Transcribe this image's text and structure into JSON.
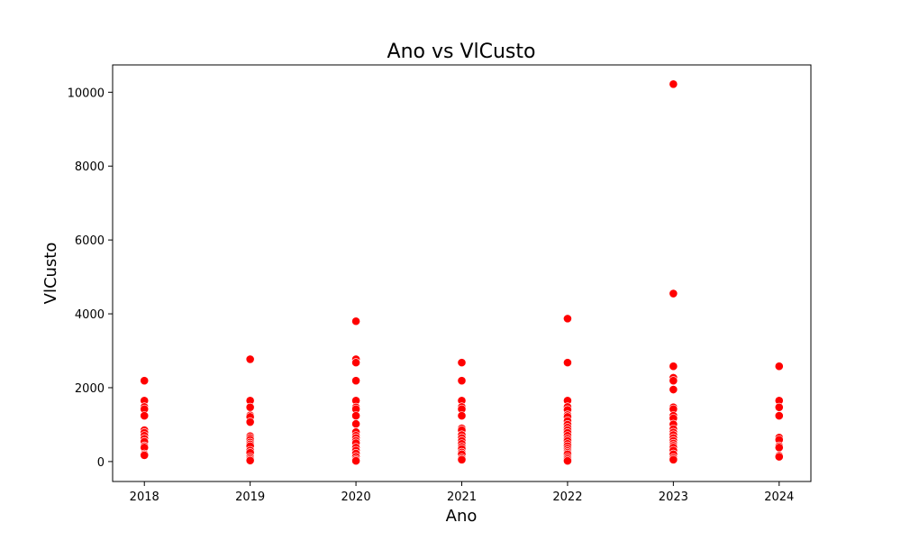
{
  "chart_data": {
    "type": "scatter",
    "title": "Ano vs VlCusto",
    "xlabel": "Ano",
    "ylabel": "VlCusto",
    "xlim": [
      2017.7,
      2024.3
    ],
    "ylim": [
      -540,
      10740
    ],
    "xticks": [
      2018,
      2019,
      2020,
      2021,
      2022,
      2023,
      2024
    ],
    "yticks": [
      0,
      2000,
      4000,
      6000,
      8000,
      10000
    ],
    "grid": false,
    "marker_color": "#ff0000",
    "marker_edge_color": "#ffffff",
    "points": [
      {
        "x": 2018,
        "y": 2190
      },
      {
        "x": 2018,
        "y": 1650
      },
      {
        "x": 2018,
        "y": 1480
      },
      {
        "x": 2018,
        "y": 1420
      },
      {
        "x": 2018,
        "y": 1240
      },
      {
        "x": 2018,
        "y": 850
      },
      {
        "x": 2018,
        "y": 780
      },
      {
        "x": 2018,
        "y": 700
      },
      {
        "x": 2018,
        "y": 620
      },
      {
        "x": 2018,
        "y": 540
      },
      {
        "x": 2018,
        "y": 420
      },
      {
        "x": 2018,
        "y": 380
      },
      {
        "x": 2018,
        "y": 200
      },
      {
        "x": 2018,
        "y": 170
      },
      {
        "x": 2019,
        "y": 2770
      },
      {
        "x": 2019,
        "y": 1650
      },
      {
        "x": 2019,
        "y": 1470
      },
      {
        "x": 2019,
        "y": 1250
      },
      {
        "x": 2019,
        "y": 1210
      },
      {
        "x": 2019,
        "y": 1070
      },
      {
        "x": 2019,
        "y": 690
      },
      {
        "x": 2019,
        "y": 640
      },
      {
        "x": 2019,
        "y": 590
      },
      {
        "x": 2019,
        "y": 520
      },
      {
        "x": 2019,
        "y": 470
      },
      {
        "x": 2019,
        "y": 420
      },
      {
        "x": 2019,
        "y": 300
      },
      {
        "x": 2019,
        "y": 240
      },
      {
        "x": 2019,
        "y": 120
      },
      {
        "x": 2019,
        "y": 70
      },
      {
        "x": 2019,
        "y": 30
      },
      {
        "x": 2020,
        "y": 3800
      },
      {
        "x": 2020,
        "y": 2770
      },
      {
        "x": 2020,
        "y": 2680
      },
      {
        "x": 2020,
        "y": 2190
      },
      {
        "x": 2020,
        "y": 1650
      },
      {
        "x": 2020,
        "y": 1470
      },
      {
        "x": 2020,
        "y": 1420
      },
      {
        "x": 2020,
        "y": 1240
      },
      {
        "x": 2020,
        "y": 1020
      },
      {
        "x": 2020,
        "y": 800
      },
      {
        "x": 2020,
        "y": 700
      },
      {
        "x": 2020,
        "y": 640
      },
      {
        "x": 2020,
        "y": 560
      },
      {
        "x": 2020,
        "y": 500
      },
      {
        "x": 2020,
        "y": 380
      },
      {
        "x": 2020,
        "y": 300
      },
      {
        "x": 2020,
        "y": 220
      },
      {
        "x": 2020,
        "y": 130
      },
      {
        "x": 2020,
        "y": 60
      },
      {
        "x": 2020,
        "y": 20
      },
      {
        "x": 2021,
        "y": 2680
      },
      {
        "x": 2021,
        "y": 2190
      },
      {
        "x": 2021,
        "y": 1650
      },
      {
        "x": 2021,
        "y": 1480
      },
      {
        "x": 2021,
        "y": 1420
      },
      {
        "x": 2021,
        "y": 1240
      },
      {
        "x": 2021,
        "y": 900
      },
      {
        "x": 2021,
        "y": 850
      },
      {
        "x": 2021,
        "y": 720
      },
      {
        "x": 2021,
        "y": 640
      },
      {
        "x": 2021,
        "y": 560
      },
      {
        "x": 2021,
        "y": 480
      },
      {
        "x": 2021,
        "y": 400
      },
      {
        "x": 2021,
        "y": 340
      },
      {
        "x": 2021,
        "y": 250
      },
      {
        "x": 2021,
        "y": 200
      },
      {
        "x": 2021,
        "y": 90
      },
      {
        "x": 2021,
        "y": 50
      },
      {
        "x": 2022,
        "y": 3870
      },
      {
        "x": 2022,
        "y": 2680
      },
      {
        "x": 2022,
        "y": 1650
      },
      {
        "x": 2022,
        "y": 1480
      },
      {
        "x": 2022,
        "y": 1400
      },
      {
        "x": 2022,
        "y": 1260
      },
      {
        "x": 2022,
        "y": 1210
      },
      {
        "x": 2022,
        "y": 1100
      },
      {
        "x": 2022,
        "y": 1000
      },
      {
        "x": 2022,
        "y": 920
      },
      {
        "x": 2022,
        "y": 850
      },
      {
        "x": 2022,
        "y": 780
      },
      {
        "x": 2022,
        "y": 700
      },
      {
        "x": 2022,
        "y": 620
      },
      {
        "x": 2022,
        "y": 560
      },
      {
        "x": 2022,
        "y": 480
      },
      {
        "x": 2022,
        "y": 420
      },
      {
        "x": 2022,
        "y": 350
      },
      {
        "x": 2022,
        "y": 290
      },
      {
        "x": 2022,
        "y": 240
      },
      {
        "x": 2022,
        "y": 200
      },
      {
        "x": 2022,
        "y": 120
      },
      {
        "x": 2022,
        "y": 70
      },
      {
        "x": 2022,
        "y": 20
      },
      {
        "x": 2023,
        "y": 10220
      },
      {
        "x": 2023,
        "y": 4550
      },
      {
        "x": 2023,
        "y": 2580
      },
      {
        "x": 2023,
        "y": 2270
      },
      {
        "x": 2023,
        "y": 2190
      },
      {
        "x": 2023,
        "y": 1950
      },
      {
        "x": 2023,
        "y": 1470
      },
      {
        "x": 2023,
        "y": 1420
      },
      {
        "x": 2023,
        "y": 1240
      },
      {
        "x": 2023,
        "y": 1170
      },
      {
        "x": 2023,
        "y": 1010
      },
      {
        "x": 2023,
        "y": 880
      },
      {
        "x": 2023,
        "y": 790
      },
      {
        "x": 2023,
        "y": 720
      },
      {
        "x": 2023,
        "y": 640
      },
      {
        "x": 2023,
        "y": 560
      },
      {
        "x": 2023,
        "y": 490
      },
      {
        "x": 2023,
        "y": 430
      },
      {
        "x": 2023,
        "y": 380
      },
      {
        "x": 2023,
        "y": 300
      },
      {
        "x": 2023,
        "y": 200
      },
      {
        "x": 2023,
        "y": 100
      },
      {
        "x": 2023,
        "y": 50
      },
      {
        "x": 2024,
        "y": 2580
      },
      {
        "x": 2024,
        "y": 1650
      },
      {
        "x": 2024,
        "y": 1470
      },
      {
        "x": 2024,
        "y": 1240
      },
      {
        "x": 2024,
        "y": 650
      },
      {
        "x": 2024,
        "y": 590
      },
      {
        "x": 2024,
        "y": 420
      },
      {
        "x": 2024,
        "y": 380
      },
      {
        "x": 2024,
        "y": 160
      },
      {
        "x": 2024,
        "y": 130
      }
    ]
  }
}
